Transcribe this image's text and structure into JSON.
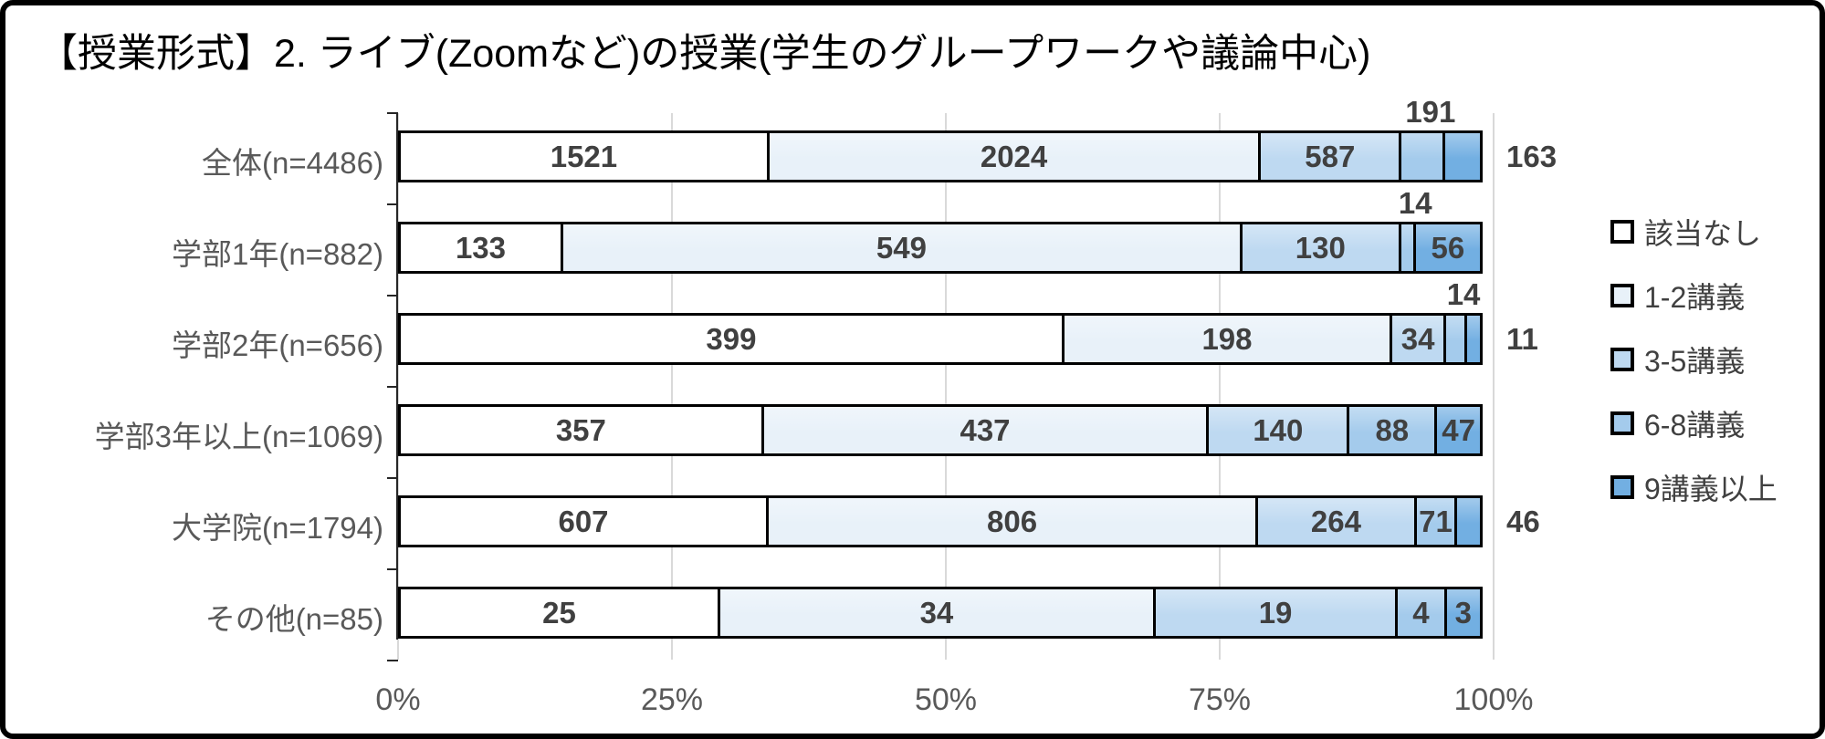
{
  "title": "【授業形式】2. ライブ(Zoomなど)の授業(学生のグループワークや議論中心)",
  "chart_data": {
    "type": "bar",
    "stacked": true,
    "orientation": "horizontal",
    "percent_of_row_total": true,
    "title": "【授業形式】2. ライブ(Zoomなど)の授業(学生のグループワークや議論中心)",
    "categories": [
      "全体(n=4486)",
      "学部1年(n=882)",
      "学部2年(n=656)",
      "学部3年以上(n=1069)",
      "大学院(n=1794)",
      "その他(n=85)"
    ],
    "row_totals": [
      4486,
      882,
      656,
      1069,
      1794,
      85
    ],
    "series": [
      {
        "name": "該当なし",
        "color": "#ffffff",
        "values": [
          1521,
          133,
          399,
          357,
          607,
          25
        ]
      },
      {
        "name": "1-2講義",
        "color": "#e8f1f9",
        "values": [
          2024,
          549,
          198,
          437,
          806,
          34
        ]
      },
      {
        "name": "3-5講義",
        "color": "#bed9f1",
        "values": [
          587,
          130,
          34,
          140,
          264,
          19
        ]
      },
      {
        "name": "6-8講義",
        "color": "#a4cbec",
        "values": [
          191,
          14,
          14,
          88,
          71,
          4
        ]
      },
      {
        "name": "9講義以上",
        "color": "#72afe2",
        "values": [
          163,
          56,
          11,
          47,
          46,
          3
        ]
      }
    ],
    "x_axis": {
      "tick_labels": [
        "0%",
        "25%",
        "50%",
        "75%",
        "100%"
      ],
      "range_percent": [
        0,
        100
      ],
      "grid": true
    },
    "legend_position": "right",
    "colors": {
      "grid": "#d9d9d9",
      "axis": "#262626",
      "bar_border": "#000000",
      "data_label": "#404040",
      "category_label": "#595959",
      "axis_label": "#595959"
    }
  }
}
